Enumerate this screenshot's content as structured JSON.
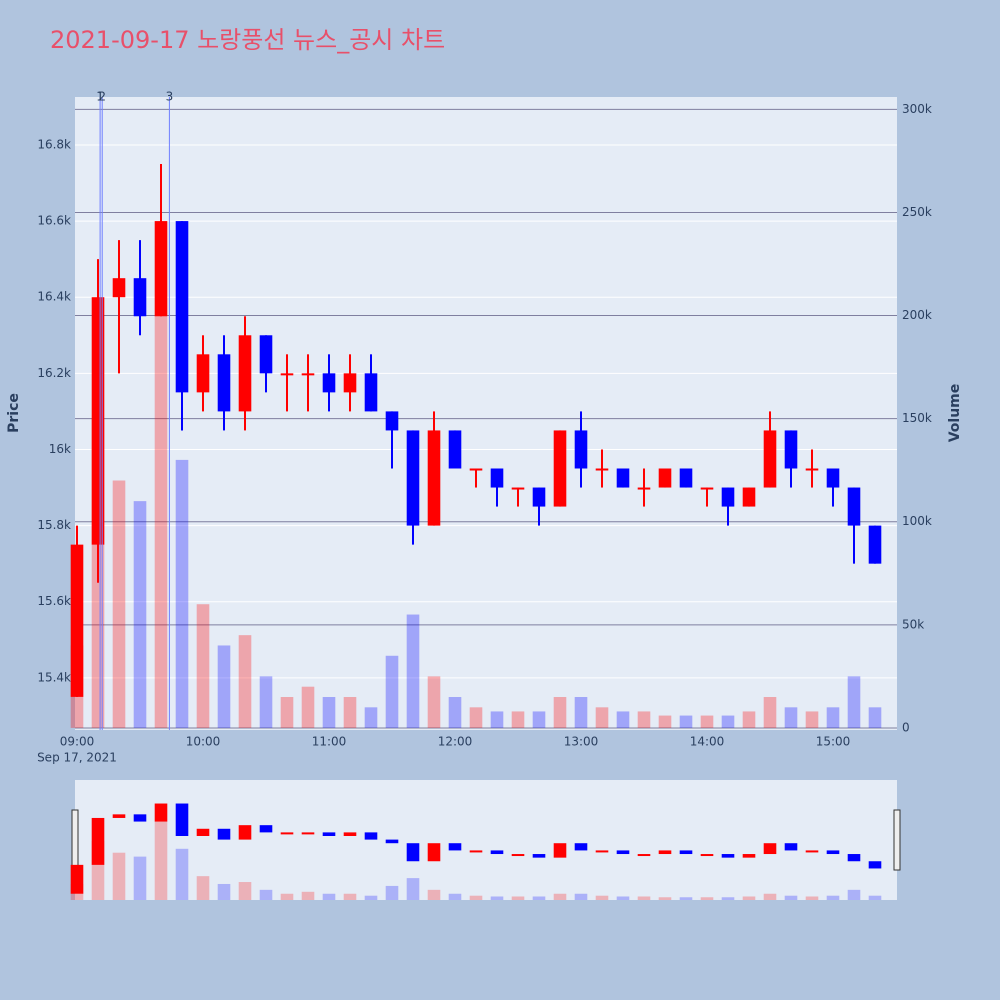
{
  "chart_data": {
    "type": "candlestick",
    "title": "2021-09-17 노랑풍선 뉴스_공시 차트",
    "y_label": "Price",
    "y2_label": "Volume",
    "date_label": "Sep 17, 2021",
    "up_color": "#ff0000",
    "down_color": "#0000ff",
    "x": [
      "09:00",
      "09:10",
      "09:20",
      "09:30",
      "09:40",
      "09:50",
      "10:00",
      "10:10",
      "10:20",
      "10:30",
      "10:40",
      "10:50",
      "11:00",
      "11:10",
      "11:20",
      "11:30",
      "11:40",
      "11:50",
      "12:00",
      "12:10",
      "12:20",
      "12:30",
      "12:40",
      "12:50",
      "13:00",
      "13:10",
      "13:20",
      "13:30",
      "13:40",
      "13:50",
      "14:00",
      "14:10",
      "14:20",
      "14:30",
      "14:40",
      "14:50",
      "15:00",
      "15:10",
      "15:20"
    ],
    "open": [
      15350,
      15750,
      16400,
      16450,
      16350,
      16600,
      16150,
      16250,
      16100,
      16300,
      16200,
      16200,
      16200,
      16150,
      16200,
      16100,
      16050,
      15800,
      16050,
      15950,
      15950,
      15900,
      15900,
      15850,
      16050,
      15950,
      15950,
      15900,
      15900,
      15950,
      15900,
      15900,
      15850,
      15900,
      16050,
      15950,
      15950,
      15900,
      15800
    ],
    "high": [
      15800,
      16500,
      16550,
      16550,
      16750,
      16600,
      16300,
      16300,
      16350,
      16300,
      16250,
      16250,
      16250,
      16250,
      16250,
      16100,
      16050,
      16100,
      16050,
      15950,
      15950,
      15900,
      15900,
      16050,
      16100,
      16000,
      15950,
      15950,
      15950,
      15950,
      15900,
      15900,
      15900,
      16100,
      16050,
      16000,
      15950,
      15900,
      15800
    ],
    "low": [
      15350,
      15650,
      16200,
      16300,
      16350,
      16050,
      16100,
      16050,
      16050,
      16150,
      16100,
      16100,
      16100,
      16100,
      16100,
      15950,
      15750,
      15800,
      15950,
      15900,
      15850,
      15850,
      15800,
      15850,
      15900,
      15900,
      15900,
      15850,
      15900,
      15900,
      15850,
      15800,
      15850,
      15900,
      15900,
      15900,
      15850,
      15700,
      15700
    ],
    "close": [
      15750,
      16400,
      16450,
      16350,
      16600,
      16150,
      16250,
      16100,
      16300,
      16200,
      16200,
      16200,
      16150,
      16200,
      16100,
      16050,
      15800,
      16050,
      15950,
      15950,
      15900,
      15900,
      15850,
      16050,
      15950,
      15950,
      15900,
      15900,
      15950,
      15900,
      15900,
      15850,
      15900,
      16050,
      15950,
      15950,
      15900,
      15800,
      15700
    ],
    "volume": [
      40000,
      150000,
      120000,
      110000,
      200000,
      130000,
      60000,
      40000,
      45000,
      25000,
      15000,
      20000,
      15000,
      15000,
      10000,
      35000,
      55000,
      25000,
      15000,
      10000,
      8000,
      8000,
      8000,
      15000,
      15000,
      10000,
      8000,
      8000,
      6000,
      6000,
      6000,
      6000,
      8000,
      15000,
      10000,
      8000,
      10000,
      25000,
      10000
    ],
    "annotations": [
      {
        "x": "09:11",
        "text": "1"
      },
      {
        "x": "09:12",
        "text": "2"
      },
      {
        "x": "09:44",
        "text": "3"
      }
    ],
    "xlim": [
      "09:00",
      "15:30"
    ],
    "xticks": [
      "09:00",
      "10:00",
      "11:00",
      "12:00",
      "13:00",
      "14:00",
      "15:00"
    ],
    "ylim": [
      15263,
      16926
    ],
    "yticks": [
      {
        "value": 15400,
        "label": "15.4k"
      },
      {
        "value": 15600,
        "label": "15.6k"
      },
      {
        "value": 15800,
        "label": "15.8k"
      },
      {
        "value": 16000,
        "label": "16k"
      },
      {
        "value": 16200,
        "label": "16.2k"
      },
      {
        "value": 16400,
        "label": "16.4k"
      },
      {
        "value": 16600,
        "label": "16.6k"
      },
      {
        "value": 16800,
        "label": "16.8k"
      }
    ],
    "y2lim": [
      -1000,
      306000
    ],
    "y2ticks": [
      0,
      {
        "value": 50000,
        "label": "50k"
      },
      {
        "value": 100000,
        "label": "100k"
      },
      {
        "value": 150000,
        "label": "150k"
      },
      {
        "value": 200000,
        "label": "200k"
      },
      {
        "value": 250000,
        "label": "250k"
      },
      {
        "value": 300000,
        "label": "300k"
      }
    ]
  }
}
